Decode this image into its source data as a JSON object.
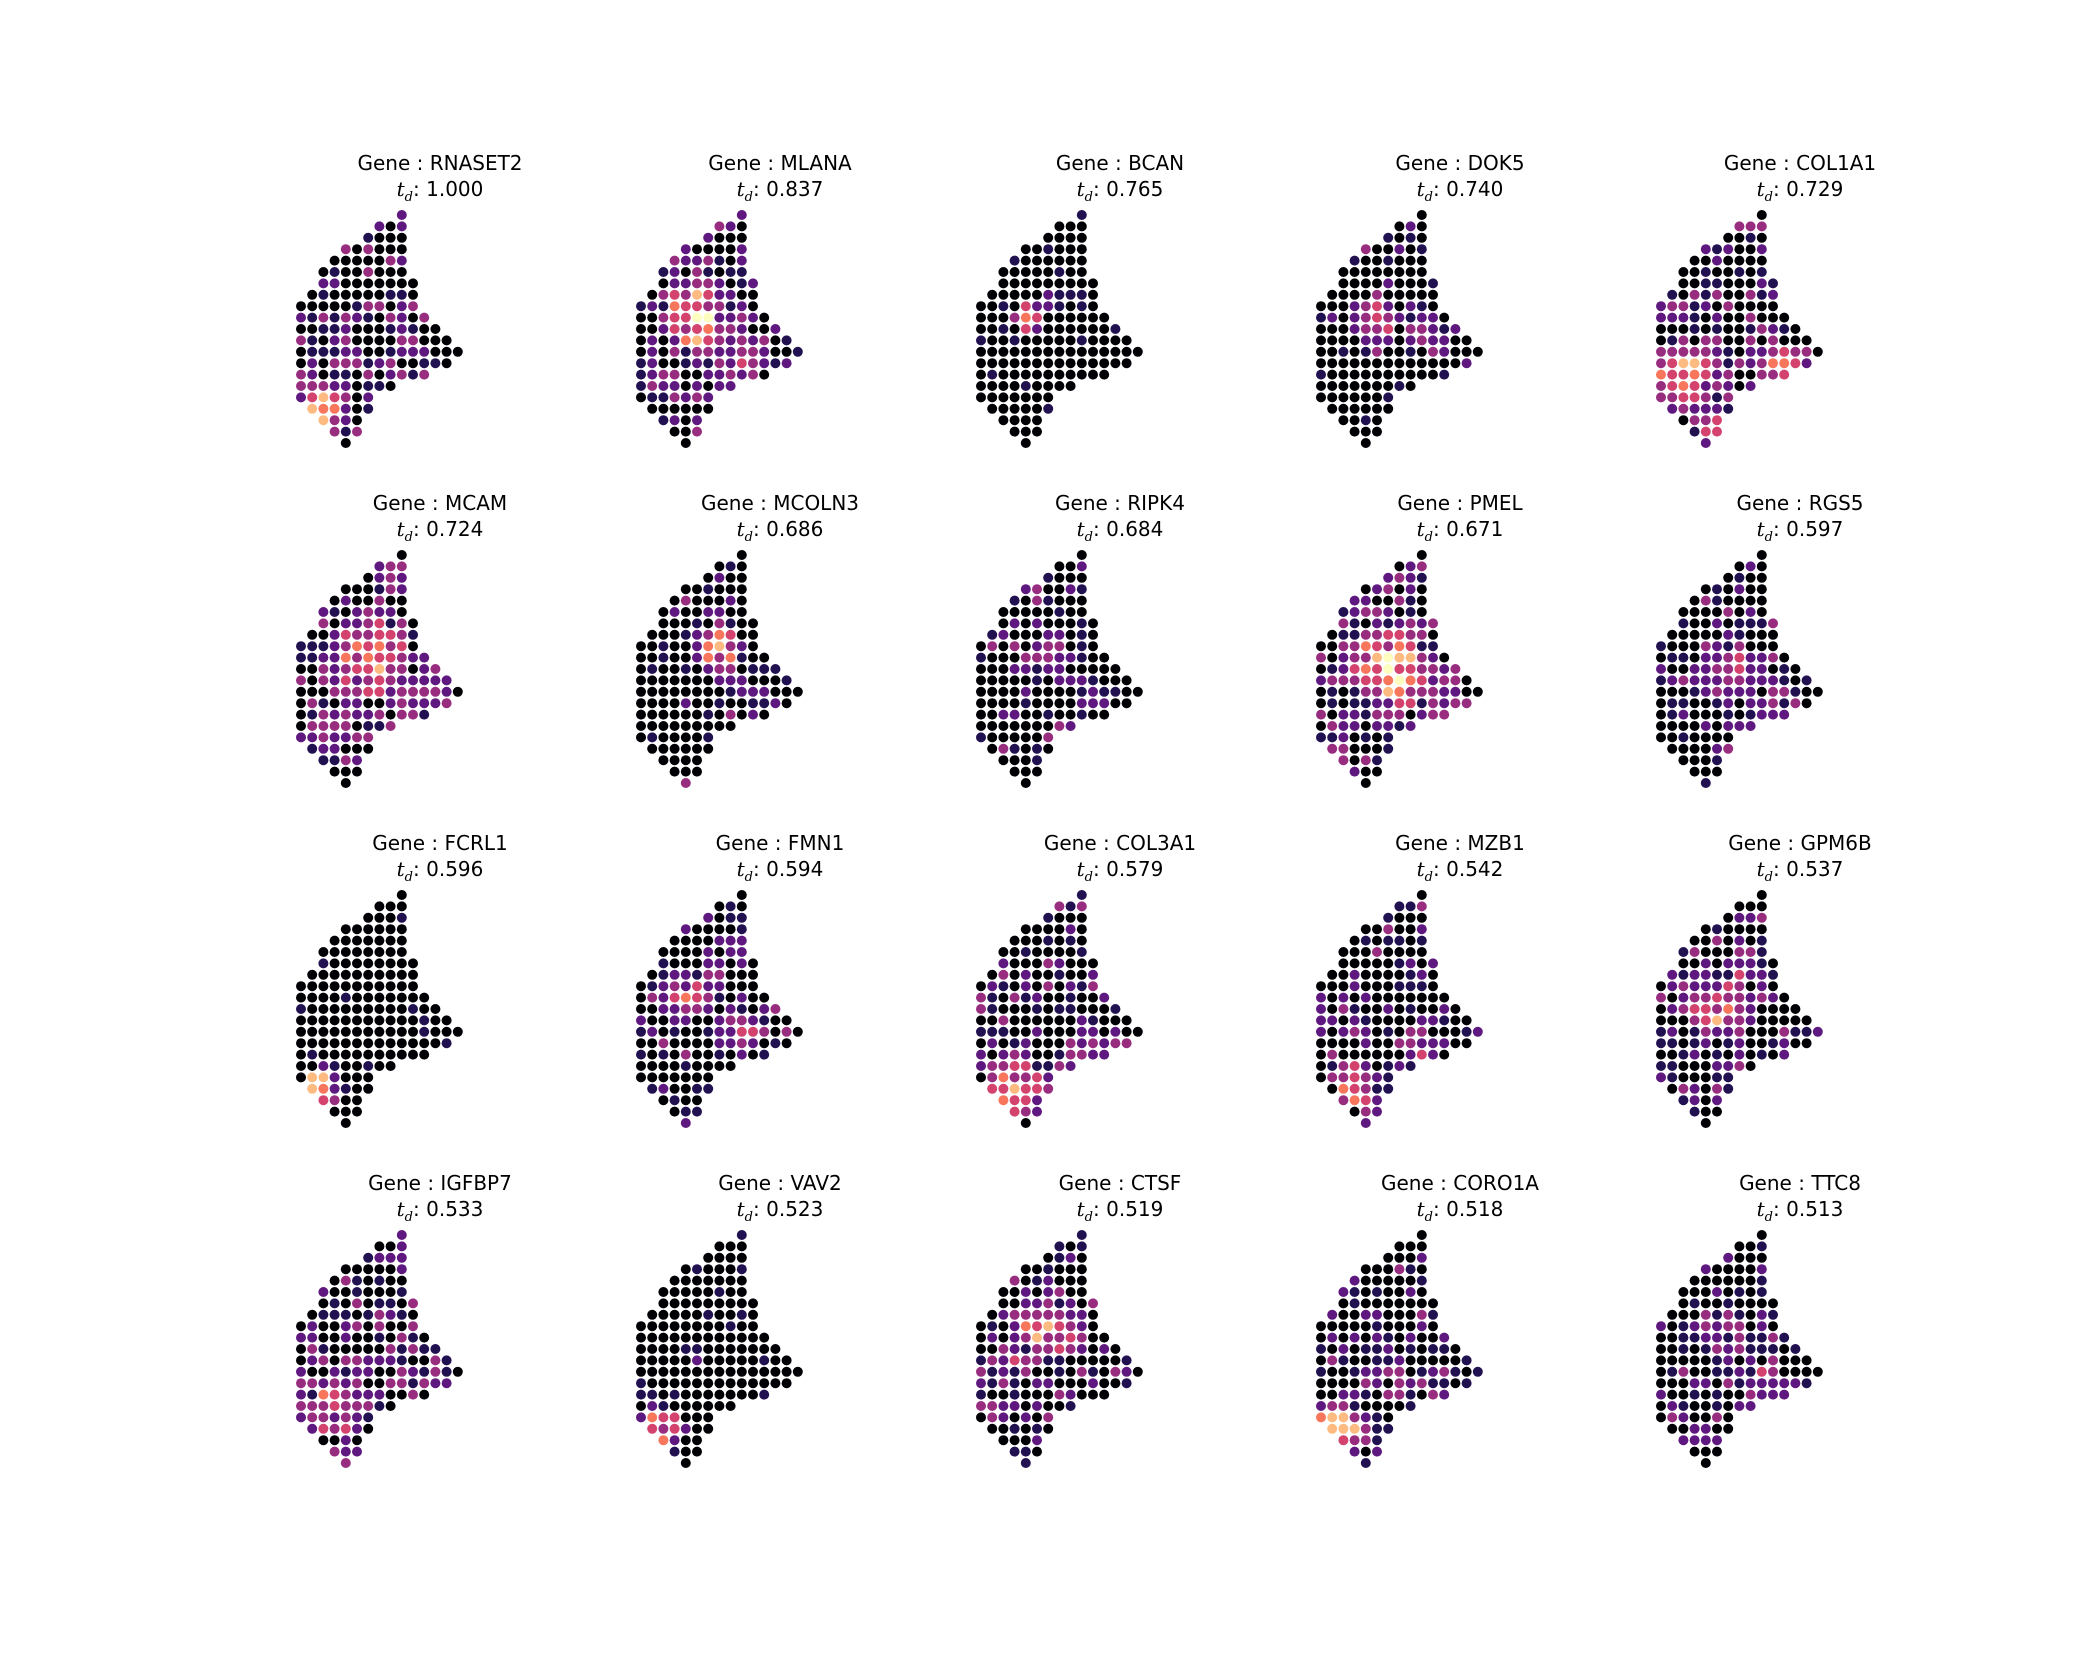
{
  "figure": {
    "title_prefix": "Gene : ",
    "metric_label": "t",
    "metric_subscript": "d",
    "metric_separator": ": ",
    "colormap": [
      "#000004",
      "#221150",
      "#5f187f",
      "#982d80",
      "#d3436e",
      "#f8765c",
      "#febb81",
      "#fcfdbf"
    ]
  },
  "chart_data": [
    {
      "type": "scatter",
      "gene": "RNASET2",
      "t_d": "1.000",
      "hotspots": [
        {
          "x": 1.5,
          "y": 3,
          "r": 2.4,
          "v": 1.0
        },
        {
          "x": 4,
          "y": 9,
          "r": 3.0,
          "v": 0.35
        },
        {
          "x": 9,
          "y": 8,
          "r": 3.0,
          "v": 0.3
        }
      ],
      "base": 0.12
    },
    {
      "type": "scatter",
      "gene": "MLANA",
      "t_d": "0.837",
      "hotspots": [
        {
          "x": 5,
          "y": 11,
          "r": 3.6,
          "v": 0.95
        },
        {
          "x": 9,
          "y": 8,
          "r": 3.0,
          "v": 0.6
        },
        {
          "x": 2,
          "y": 5,
          "r": 2.5,
          "v": 0.35
        }
      ],
      "base": 0.1
    },
    {
      "type": "scatter",
      "gene": "BCAN",
      "t_d": "0.765",
      "hotspots": [
        {
          "x": 4,
          "y": 11,
          "r": 1.5,
          "v": 0.9
        },
        {
          "x": 6,
          "y": 12,
          "r": 1.5,
          "v": 0.4
        }
      ],
      "base": 0.0
    },
    {
      "type": "scatter",
      "gene": "DOK5",
      "t_d": "0.740",
      "hotspots": [
        {
          "x": 5,
          "y": 11,
          "r": 2.3,
          "v": 0.7
        },
        {
          "x": 9,
          "y": 10,
          "r": 2.0,
          "v": 0.5
        },
        {
          "x": 8,
          "y": 4,
          "r": 2.0,
          "v": 0.2
        }
      ],
      "base": 0.02
    },
    {
      "type": "scatter",
      "gene": "COL1A1",
      "t_d": "0.729",
      "hotspots": [
        {
          "x": 2,
          "y": 6,
          "r": 3.5,
          "v": 0.85
        },
        {
          "x": 11,
          "y": 6,
          "r": 3.0,
          "v": 0.75
        },
        {
          "x": 5,
          "y": 1,
          "r": 2.5,
          "v": 0.7
        }
      ],
      "base": 0.12
    },
    {
      "type": "scatter",
      "gene": "MCAM",
      "t_d": "0.724",
      "hotspots": [
        {
          "x": 6,
          "y": 11,
          "r": 4.0,
          "v": 0.85
        },
        {
          "x": 2,
          "y": 5,
          "r": 3.0,
          "v": 0.4
        },
        {
          "x": 11,
          "y": 7,
          "r": 3.0,
          "v": 0.45
        }
      ],
      "base": 0.15
    },
    {
      "type": "scatter",
      "gene": "MCOLN3",
      "t_d": "0.686",
      "hotspots": [
        {
          "x": 7,
          "y": 12,
          "r": 2.6,
          "v": 0.75
        },
        {
          "x": 10,
          "y": 9,
          "r": 2.0,
          "v": 0.35
        }
      ],
      "base": 0.02
    },
    {
      "type": "scatter",
      "gene": "RIPK4",
      "t_d": "0.684",
      "hotspots": [
        {
          "x": 6,
          "y": 11,
          "r": 3.0,
          "v": 0.55
        },
        {
          "x": 9,
          "y": 8,
          "r": 2.5,
          "v": 0.3
        }
      ],
      "base": 0.04
    },
    {
      "type": "scatter",
      "gene": "PMEL",
      "t_d": "0.671",
      "hotspots": [
        {
          "x": 6,
          "y": 10,
          "r": 4.2,
          "v": 0.95
        },
        {
          "x": 2,
          "y": 5,
          "r": 3.0,
          "v": 0.3
        },
        {
          "x": 11,
          "y": 7,
          "r": 2.5,
          "v": 0.5
        }
      ],
      "base": 0.14
    },
    {
      "type": "scatter",
      "gene": "RGS5",
      "t_d": "0.597",
      "hotspots": [
        {
          "x": 6,
          "y": 10,
          "r": 3.6,
          "v": 0.55
        },
        {
          "x": 10,
          "y": 7,
          "r": 2.5,
          "v": 0.4
        }
      ],
      "base": 0.06
    },
    {
      "type": "scatter",
      "gene": "FCRL1",
      "t_d": "0.596",
      "hotspots": [
        {
          "x": 1.5,
          "y": 3,
          "r": 2.0,
          "v": 1.0
        }
      ],
      "base": 0.0
    },
    {
      "type": "scatter",
      "gene": "FMN1",
      "t_d": "0.594",
      "hotspots": [
        {
          "x": 4,
          "y": 11,
          "r": 2.5,
          "v": 0.65
        },
        {
          "x": 9,
          "y": 8,
          "r": 2.5,
          "v": 0.55
        },
        {
          "x": 7,
          "y": 13,
          "r": 2.0,
          "v": 0.4
        }
      ],
      "base": 0.05
    },
    {
      "type": "scatter",
      "gene": "COL3A1",
      "t_d": "0.579",
      "hotspots": [
        {
          "x": 3,
          "y": 3,
          "r": 3.2,
          "v": 0.8
        },
        {
          "x": 10,
          "y": 6,
          "r": 2.8,
          "v": 0.6
        },
        {
          "x": 4,
          "y": 11,
          "r": 2.5,
          "v": 0.3
        }
      ],
      "base": 0.1
    },
    {
      "type": "scatter",
      "gene": "MZB1",
      "t_d": "0.542",
      "hotspots": [
        {
          "x": 3,
          "y": 3,
          "r": 2.5,
          "v": 0.8
        },
        {
          "x": 9,
          "y": 7,
          "r": 2.5,
          "v": 0.5
        },
        {
          "x": 1,
          "y": 10,
          "r": 2.0,
          "v": 0.4
        }
      ],
      "base": 0.06
    },
    {
      "type": "scatter",
      "gene": "GPM6B",
      "t_d": "0.537",
      "hotspots": [
        {
          "x": 5,
          "y": 10,
          "r": 3.0,
          "v": 0.8
        },
        {
          "x": 7,
          "y": 13,
          "r": 2.5,
          "v": 0.55
        }
      ],
      "base": 0.1
    },
    {
      "type": "scatter",
      "gene": "IGFBP7",
      "t_d": "0.533",
      "hotspots": [
        {
          "x": 3,
          "y": 5,
          "r": 3.5,
          "v": 0.7
        },
        {
          "x": 9,
          "y": 7,
          "r": 2.5,
          "v": 0.4
        },
        {
          "x": 4,
          "y": 1,
          "r": 2.5,
          "v": 0.45
        }
      ],
      "base": 0.14
    },
    {
      "type": "scatter",
      "gene": "VAV2",
      "t_d": "0.523",
      "hotspots": [
        {
          "x": 1.5,
          "y": 3,
          "r": 2.2,
          "v": 0.9
        },
        {
          "x": 4,
          "y": 9,
          "r": 1.5,
          "v": 0.4
        }
      ],
      "base": 0.0
    },
    {
      "type": "scatter",
      "gene": "CTSF",
      "t_d": "0.519",
      "hotspots": [
        {
          "x": 6,
          "y": 12,
          "r": 3.2,
          "v": 0.85
        },
        {
          "x": 3,
          "y": 9,
          "r": 2.5,
          "v": 0.5
        },
        {
          "x": 8,
          "y": 6,
          "r": 2.0,
          "v": 0.35
        }
      ],
      "base": 0.08
    },
    {
      "type": "scatter",
      "gene": "CORO1A",
      "t_d": "0.518",
      "hotspots": [
        {
          "x": 1.5,
          "y": 3,
          "r": 2.6,
          "v": 0.95
        },
        {
          "x": 6,
          "y": 8,
          "r": 3.0,
          "v": 0.4
        },
        {
          "x": 9,
          "y": 7,
          "r": 2.0,
          "v": 0.4
        }
      ],
      "base": 0.08
    },
    {
      "type": "scatter",
      "gene": "TTC8",
      "t_d": "0.513",
      "hotspots": [
        {
          "x": 6,
          "y": 11,
          "r": 2.8,
          "v": 0.5
        },
        {
          "x": 9,
          "y": 7,
          "r": 2.0,
          "v": 0.6
        }
      ],
      "base": 0.06
    }
  ]
}
